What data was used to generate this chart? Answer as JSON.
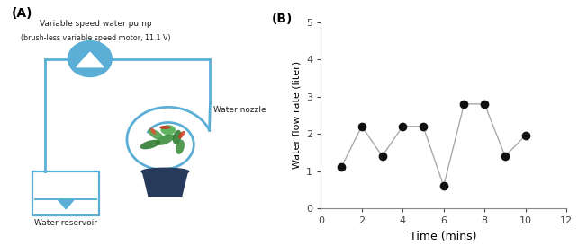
{
  "panel_b": {
    "title": "(B)",
    "x": [
      1,
      2,
      3,
      4,
      5,
      6,
      7,
      8,
      9,
      10
    ],
    "y": [
      1.1,
      2.2,
      1.4,
      2.2,
      2.2,
      0.6,
      2.8,
      2.8,
      1.4,
      1.95
    ],
    "xlim": [
      0,
      12
    ],
    "ylim": [
      0,
      5
    ],
    "xticks": [
      0,
      2,
      4,
      6,
      8,
      10,
      12
    ],
    "yticks": [
      0,
      1,
      2,
      3,
      4,
      5
    ],
    "xlabel": "Time (mins)",
    "ylabel": "Water flow rate (liter)",
    "line_color": "#aaaaaa",
    "marker_color": "#111111",
    "marker_size": 6,
    "line_width": 1.0
  },
  "panel_a": {
    "title": "(A)",
    "pump_label": "Variable speed water pump",
    "pump_sublabel": "(brush-less variable speed motor, 11.1 V)",
    "reservoir_label": "Water reservoir",
    "nozzle_label": "Water nozzle",
    "pipe_color": "#5bafd6",
    "bg_color": "#ffffff"
  }
}
